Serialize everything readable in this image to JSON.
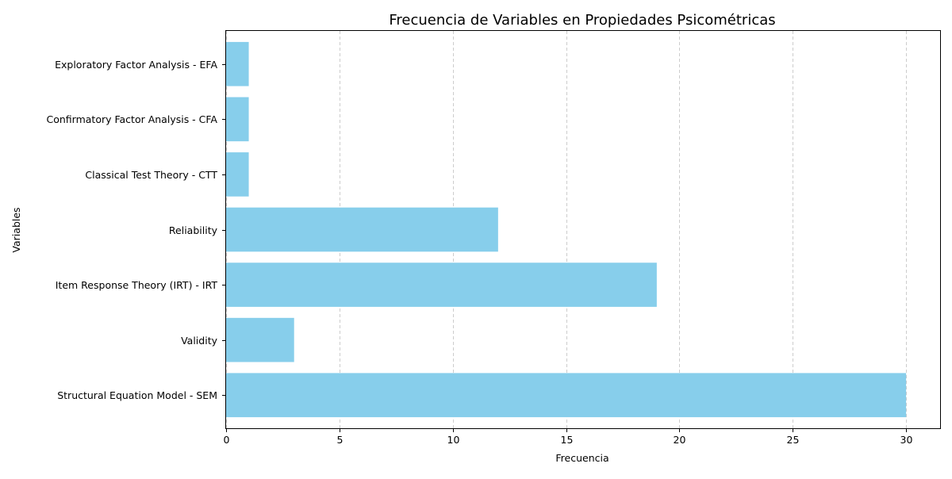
{
  "chart_data": {
    "type": "bar",
    "orientation": "horizontal",
    "title": "Frecuencia de Variables en Propiedades Psicométricas",
    "xlabel": "Frecuencia",
    "ylabel": "Variables",
    "categories": [
      "Structural Equation Model - SEM",
      "Validity",
      "Item Response Theory (IRT) - IRT",
      "Reliability",
      "Classical Test Theory - CTT",
      "Confirmatory Factor Analysis - CFA",
      "Exploratory Factor Analysis - EFA"
    ],
    "values": [
      30,
      3,
      19,
      12,
      1,
      1,
      1
    ],
    "xlim": [
      0,
      31.5
    ],
    "xticks": [
      0,
      5,
      10,
      15,
      20,
      25,
      30
    ],
    "grid": {
      "x": true,
      "y": false,
      "style": "dashed"
    },
    "bar_color": "#87CEEB",
    "grid_color": "#cccccc",
    "axis_color": "#000000"
  }
}
